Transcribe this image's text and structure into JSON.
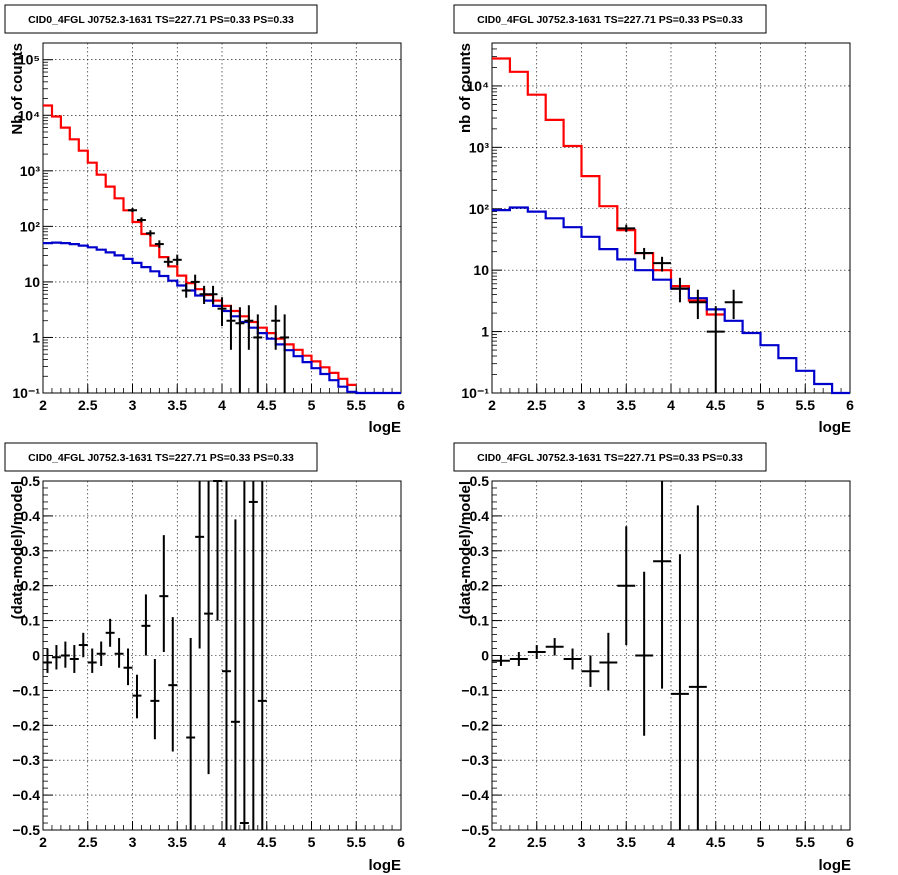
{
  "charts": [
    {
      "title": "CID0_4FGL J0752.3-1631 TS=227.71 PS=0.33 PS=0.33",
      "xlabel": "logE",
      "ylabel": "Nb of counts",
      "type": "line",
      "log_y": true,
      "xlim": [
        2,
        6
      ],
      "ylim": [
        0.1,
        200000
      ],
      "x_ticks": [
        "2",
        "2.5",
        "3",
        "3.5",
        "4",
        "4.5",
        "5",
        "5.5",
        "6"
      ],
      "y_ticks": [
        {
          "value": 0.1,
          "label": "10⁻¹"
        },
        {
          "value": 1,
          "label": "1"
        },
        {
          "value": 10,
          "label": "10"
        },
        {
          "value": 100,
          "label": "10²"
        },
        {
          "value": 1000,
          "label": "10³"
        },
        {
          "value": 10000,
          "label": "10⁴"
        },
        {
          "value": 100000,
          "label": "10⁵"
        }
      ],
      "bin_width": 0.1,
      "series": [
        {
          "role": "total-model",
          "color": "#ff0000",
          "values": [
            15000,
            9500,
            6000,
            3700,
            2300,
            1400,
            850,
            520,
            320,
            195,
            120,
            73,
            45,
            28,
            19,
            13,
            9.5,
            7.4,
            5.8,
            4.6,
            3.7,
            3.0,
            2.4,
            1.9,
            1.5,
            1.2,
            0.95,
            0.75,
            0.6,
            0.47,
            0.37,
            0.29,
            0.23,
            0.18,
            0.14
          ]
        },
        {
          "role": "source-model",
          "color": "#0000cc",
          "values": [
            50,
            51,
            50,
            48,
            45,
            42,
            38,
            34,
            30,
            26,
            22,
            18.5,
            15.5,
            12.8,
            10.5,
            8.6,
            7.0,
            5.7,
            4.6,
            3.7,
            3.0,
            2.4,
            1.9,
            1.5,
            1.2,
            0.95,
            0.75,
            0.59,
            0.46,
            0.36,
            0.28,
            0.22,
            0.17,
            0.13,
            0.105,
            0.1,
            0.1,
            0.1,
            0.1,
            0.1
          ]
        }
      ],
      "points": [
        {
          "x": 3.0,
          "y": 195,
          "ylo": 180,
          "yhi": 215
        },
        {
          "x": 3.1,
          "y": 130,
          "ylo": 118,
          "yhi": 145
        },
        {
          "x": 3.2,
          "y": 75,
          "ylo": 66,
          "yhi": 85
        },
        {
          "x": 3.3,
          "y": 48,
          "ylo": 41,
          "yhi": 56
        },
        {
          "x": 3.4,
          "y": 23,
          "ylo": 19,
          "yhi": 28
        },
        {
          "x": 3.5,
          "y": 25,
          "ylo": 20,
          "yhi": 31
        },
        {
          "x": 3.6,
          "y": 7,
          "ylo": 5.2,
          "yhi": 9.5
        },
        {
          "x": 3.7,
          "y": 10,
          "ylo": 7.3,
          "yhi": 13.5
        },
        {
          "x": 3.8,
          "y": 6,
          "ylo": 4,
          "yhi": 8.5
        },
        {
          "x": 3.9,
          "y": 6,
          "ylo": 4,
          "yhi": 8.5
        },
        {
          "x": 4.0,
          "y": 3.3,
          "ylo": 1.6,
          "yhi": 5.3
        },
        {
          "x": 4.1,
          "y": 2.0,
          "ylo": 0.6,
          "yhi": 3.8
        },
        {
          "x": 4.2,
          "y": 1.8,
          "ylo": 0.1,
          "yhi": 3.5
        },
        {
          "x": 4.3,
          "y": 2.0,
          "ylo": 0.6,
          "yhi": 3.8
        },
        {
          "x": 4.4,
          "y": 1.0,
          "ylo": 0.1,
          "yhi": 2.6
        },
        {
          "x": 4.6,
          "y": 2.0,
          "ylo": 0.6,
          "yhi": 3.8
        },
        {
          "x": 4.7,
          "y": 1.0,
          "ylo": 0.1,
          "yhi": 2.6
        }
      ]
    },
    {
      "title": "CID0_4FGL J0752.3-1631 TS=227.71 PS=0.33 PS=0.33",
      "xlabel": "logE",
      "ylabel": "nb of counts",
      "type": "line",
      "log_y": true,
      "xlim": [
        2,
        6
      ],
      "ylim": [
        0.1,
        50000
      ],
      "x_ticks": [
        "2",
        "2.5",
        "3",
        "3.5",
        "4",
        "4.5",
        "5",
        "5.5",
        "6"
      ],
      "y_ticks": [
        {
          "value": 0.1,
          "label": "10⁻¹"
        },
        {
          "value": 1,
          "label": "1"
        },
        {
          "value": 10,
          "label": "10"
        },
        {
          "value": 100,
          "label": "10²"
        },
        {
          "value": 1000,
          "label": "10³"
        },
        {
          "value": 10000,
          "label": "10⁴"
        }
      ],
      "bin_width": 0.2,
      "series": [
        {
          "role": "total-model",
          "color": "#ff0000",
          "values": [
            28000,
            17000,
            7200,
            2800,
            1050,
            340,
            110,
            45,
            19,
            10,
            5.5,
            3.2,
            1.9
          ]
        },
        {
          "role": "source-model",
          "color": "#0000cc",
          "values": [
            95,
            105,
            90,
            70,
            50,
            35,
            22,
            15,
            10,
            7,
            5,
            3.5,
            2.3,
            1.5,
            0.95,
            0.6,
            0.37,
            0.23,
            0.14,
            0.1
          ]
        }
      ],
      "points": [
        {
          "x": 3.5,
          "y": 48,
          "ylo": 42,
          "yhi": 55
        },
        {
          "x": 3.7,
          "y": 19,
          "ylo": 15,
          "yhi": 23
        },
        {
          "x": 3.9,
          "y": 13,
          "ylo": 9.5,
          "yhi": 16.5
        },
        {
          "x": 4.1,
          "y": 5.0,
          "ylo": 3.0,
          "yhi": 7.5
        },
        {
          "x": 4.3,
          "y": 3.0,
          "ylo": 1.6,
          "yhi": 4.8
        },
        {
          "x": 4.5,
          "y": 1.0,
          "ylo": 0.1,
          "yhi": 2.6
        },
        {
          "x": 4.7,
          "y": 3.0,
          "ylo": 1.6,
          "yhi": 4.8
        }
      ]
    },
    {
      "title": "CID0_4FGL J0752.3-1631 TS=227.71 PS=0.33 PS=0.33",
      "xlabel": "logE",
      "ylabel": "(data-model)/model",
      "type": "scatter",
      "log_y": false,
      "xlim": [
        2,
        6
      ],
      "ylim": [
        -0.5,
        0.5
      ],
      "x_ticks": [
        "2",
        "2.5",
        "3",
        "3.5",
        "4",
        "4.5",
        "5",
        "5.5",
        "6"
      ],
      "y_ticks": [
        {
          "value": -0.5,
          "label": "−0.5"
        },
        {
          "value": -0.4,
          "label": "−0.4"
        },
        {
          "value": -0.3,
          "label": "−0.3"
        },
        {
          "value": -0.2,
          "label": "−0.2"
        },
        {
          "value": -0.1,
          "label": "−0.1"
        },
        {
          "value": 0,
          "label": "0"
        },
        {
          "value": 0.1,
          "label": "0.1"
        },
        {
          "value": 0.2,
          "label": "0.2"
        },
        {
          "value": 0.3,
          "label": "0.3"
        },
        {
          "value": 0.4,
          "label": "0.4"
        },
        {
          "value": 0.5,
          "label": "0.5"
        }
      ],
      "bin_width": 0.1,
      "series": [],
      "points": [
        {
          "x": 2.05,
          "y": -0.02,
          "ylo": -0.05,
          "yhi": 0.02
        },
        {
          "x": 2.15,
          "y": -0.005,
          "ylo": -0.04,
          "yhi": 0.03
        },
        {
          "x": 2.25,
          "y": 0.0,
          "ylo": -0.035,
          "yhi": 0.04
        },
        {
          "x": 2.35,
          "y": -0.01,
          "ylo": -0.05,
          "yhi": 0.03
        },
        {
          "x": 2.45,
          "y": 0.03,
          "ylo": -0.005,
          "yhi": 0.065
        },
        {
          "x": 2.55,
          "y": -0.02,
          "ylo": -0.05,
          "yhi": 0.02
        },
        {
          "x": 2.65,
          "y": 0.005,
          "ylo": -0.03,
          "yhi": 0.04
        },
        {
          "x": 2.75,
          "y": 0.065,
          "ylo": 0.025,
          "yhi": 0.105
        },
        {
          "x": 2.85,
          "y": 0.005,
          "ylo": -0.035,
          "yhi": 0.05
        },
        {
          "x": 2.95,
          "y": -0.035,
          "ylo": -0.085,
          "yhi": 0.02
        },
        {
          "x": 3.05,
          "y": -0.115,
          "ylo": -0.18,
          "yhi": -0.055
        },
        {
          "x": 3.15,
          "y": 0.085,
          "ylo": 0.0,
          "yhi": 0.175
        },
        {
          "x": 3.25,
          "y": -0.13,
          "ylo": -0.24,
          "yhi": -0.01
        },
        {
          "x": 3.35,
          "y": 0.17,
          "ylo": 0.01,
          "yhi": 0.345
        },
        {
          "x": 3.45,
          "y": -0.085,
          "ylo": -0.275,
          "yhi": 0.11
        },
        {
          "x": 3.65,
          "y": -0.235,
          "ylo": -0.5,
          "yhi": 0.05
        },
        {
          "x": 3.75,
          "y": 0.34,
          "ylo": 0.02,
          "yhi": 0.5
        },
        {
          "x": 3.85,
          "y": 0.12,
          "ylo": -0.34,
          "yhi": 0.5
        },
        {
          "x": 3.95,
          "y": 0.5,
          "ylo": 0.1,
          "yhi": 0.5
        },
        {
          "x": 4.05,
          "y": -0.045,
          "ylo": -0.5,
          "yhi": 0.5
        },
        {
          "x": 4.15,
          "y": -0.19,
          "ylo": -0.5,
          "yhi": 0.39
        },
        {
          "x": 4.25,
          "y": -0.48,
          "ylo": -0.5,
          "yhi": 0.5
        },
        {
          "x": 4.35,
          "y": 0.44,
          "ylo": -0.5,
          "yhi": 0.5
        },
        {
          "x": 4.45,
          "y": -0.13,
          "ylo": -0.5,
          "yhi": 0.5
        }
      ]
    },
    {
      "title": "CID0_4FGL J0752.3-1631 TS=227.71 PS=0.33 PS=0.33",
      "xlabel": "logE",
      "ylabel": "(data-model)/model",
      "type": "scatter",
      "log_y": false,
      "xlim": [
        2,
        6
      ],
      "ylim": [
        -0.5,
        0.5
      ],
      "x_ticks": [
        "2",
        "2.5",
        "3",
        "3.5",
        "4",
        "4.5",
        "5",
        "5.5",
        "6"
      ],
      "y_ticks": [
        {
          "value": -0.5,
          "label": "−0.5"
        },
        {
          "value": -0.4,
          "label": "−0.4"
        },
        {
          "value": -0.3,
          "label": "−0.3"
        },
        {
          "value": -0.2,
          "label": "−0.2"
        },
        {
          "value": -0.1,
          "label": "−0.1"
        },
        {
          "value": 0,
          "label": "0"
        },
        {
          "value": 0.1,
          "label": "0.1"
        },
        {
          "value": 0.2,
          "label": "0.2"
        },
        {
          "value": 0.3,
          "label": "0.3"
        },
        {
          "value": 0.4,
          "label": "0.4"
        },
        {
          "value": 0.5,
          "label": "0.5"
        }
      ],
      "bin_width": 0.2,
      "series": [],
      "points": [
        {
          "x": 2.1,
          "y": -0.015,
          "ylo": -0.03,
          "yhi": 0.0
        },
        {
          "x": 2.3,
          "y": -0.01,
          "ylo": -0.03,
          "yhi": 0.01
        },
        {
          "x": 2.5,
          "y": 0.01,
          "ylo": -0.01,
          "yhi": 0.03
        },
        {
          "x": 2.7,
          "y": 0.025,
          "ylo": 0.0,
          "yhi": 0.05
        },
        {
          "x": 2.9,
          "y": -0.01,
          "ylo": -0.04,
          "yhi": 0.02
        },
        {
          "x": 3.1,
          "y": -0.045,
          "ylo": -0.09,
          "yhi": 0.0
        },
        {
          "x": 3.3,
          "y": -0.02,
          "ylo": -0.1,
          "yhi": 0.065
        },
        {
          "x": 3.5,
          "y": 0.2,
          "ylo": 0.03,
          "yhi": 0.37
        },
        {
          "x": 3.7,
          "y": 0.0,
          "ylo": -0.23,
          "yhi": 0.24
        },
        {
          "x": 3.9,
          "y": 0.27,
          "ylo": -0.095,
          "yhi": 0.5
        },
        {
          "x": 4.1,
          "y": -0.11,
          "ylo": -0.5,
          "yhi": 0.29
        },
        {
          "x": 4.3,
          "y": -0.09,
          "ylo": -0.5,
          "yhi": 0.43
        }
      ]
    }
  ]
}
